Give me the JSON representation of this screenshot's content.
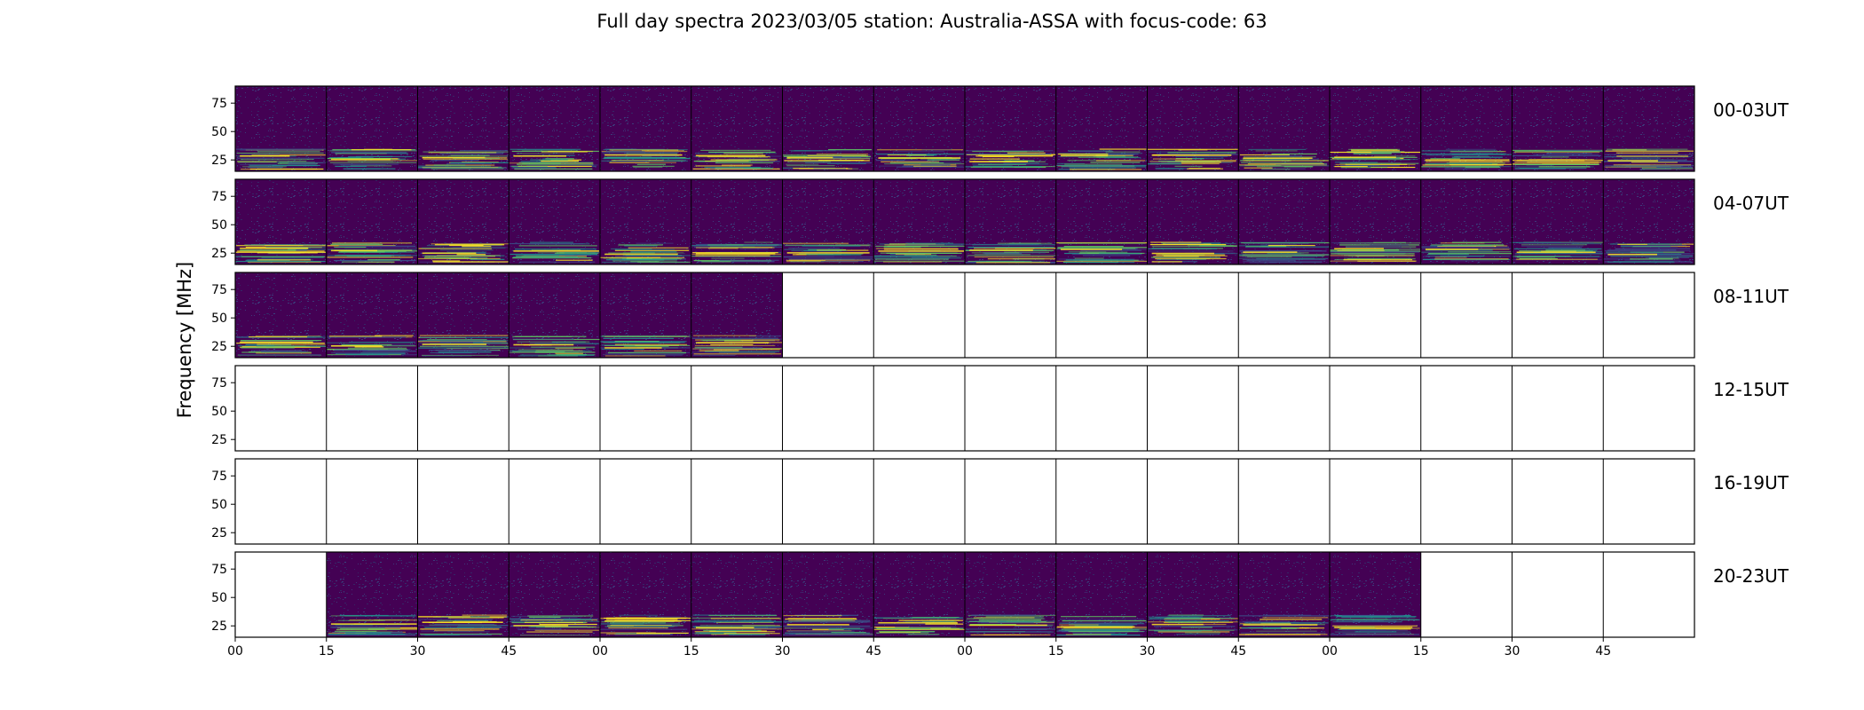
{
  "chart_data": {
    "type": "heatmap",
    "title": "Full day spectra 2023/03/05 station: Australia-ASSA with focus-code: 63",
    "ylabel": "Frequency [MHz]",
    "xlabel": "",
    "y_ticks": [
      75,
      50,
      25
    ],
    "ylim": [
      15,
      90
    ],
    "x_tick_labels": [
      "00",
      "15",
      "30",
      "45",
      "00",
      "15",
      "30",
      "45",
      "00",
      "15",
      "30",
      "45",
      "00",
      "15",
      "30",
      "45"
    ],
    "panels_per_row": 16,
    "colormap": [
      "#440154",
      "#3b528b",
      "#21918c",
      "#5ec962",
      "#fde725"
    ],
    "empty_color": "#ffffff",
    "rows": [
      {
        "label": "00-03UT",
        "available": [
          1,
          1,
          1,
          1,
          1,
          1,
          1,
          1,
          1,
          1,
          1,
          1,
          1,
          1,
          1,
          1
        ]
      },
      {
        "label": "04-07UT",
        "available": [
          1,
          1,
          1,
          1,
          1,
          1,
          1,
          1,
          1,
          1,
          1,
          1,
          1,
          1,
          1,
          1
        ]
      },
      {
        "label": "08-11UT",
        "available": [
          1,
          1,
          1,
          1,
          1,
          1,
          0,
          0,
          0,
          0,
          0,
          0,
          0,
          0,
          0,
          0
        ]
      },
      {
        "label": "12-15UT",
        "available": [
          0,
          0,
          0,
          0,
          0,
          0,
          0,
          0,
          0,
          0,
          0,
          0,
          0,
          0,
          0,
          0
        ]
      },
      {
        "label": "16-19UT",
        "available": [
          0,
          0,
          0,
          0,
          0,
          0,
          0,
          0,
          0,
          0,
          0,
          0,
          0,
          0,
          0,
          0
        ]
      },
      {
        "label": "20-23UT",
        "available": [
          0,
          1,
          1,
          1,
          1,
          1,
          1,
          1,
          1,
          1,
          1,
          1,
          1,
          0,
          0,
          0
        ]
      }
    ]
  }
}
